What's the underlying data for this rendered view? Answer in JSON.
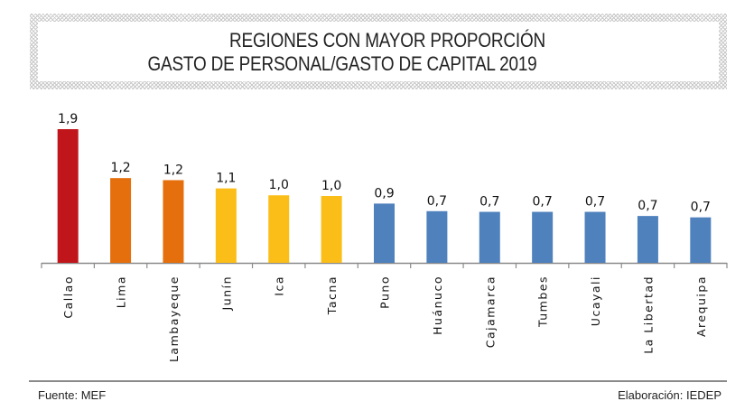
{
  "title": {
    "line1": "REGIONES CON MAYOR PROPORCIÓN",
    "line2": "GASTO DE PERSONAL/GASTO DE CAPITAL 2019"
  },
  "footer": {
    "source": "Fuente: MEF",
    "elaboration": "Elaboración: IEDEP"
  },
  "chart_data": {
    "type": "bar",
    "title": "REGIONES CON MAYOR PROPORCIÓN GASTO DE PERSONAL/GASTO DE CAPITAL 2019",
    "xlabel": "",
    "ylabel": "",
    "ylim": [
      0,
      2.0
    ],
    "grid": false,
    "legend": "none",
    "categories": [
      "Callao",
      "Lima",
      "Lambayeque",
      "Junín",
      "Ica",
      "Tacna",
      "Puno",
      "Huánuco",
      "Cajamarca",
      "Tumbes",
      "Ucayali",
      "La Libertad",
      "Arequipa"
    ],
    "values": [
      1.94,
      1.23,
      1.2,
      1.08,
      0.98,
      0.97,
      0.86,
      0.75,
      0.74,
      0.74,
      0.74,
      0.68,
      0.66
    ],
    "data_labels": [
      "1,9",
      "1,2",
      "1,2",
      "1,1",
      "1,0",
      "1,0",
      "0,9",
      "0,7",
      "0,7",
      "0,7",
      "0,7",
      "0,7",
      "0,7"
    ],
    "bar_colors": [
      "#c0161b",
      "#e56f0c",
      "#e56f0c",
      "#fbbd18",
      "#fbbd18",
      "#fbbd18",
      "#4f81bd",
      "#4f81bd",
      "#4f81bd",
      "#4f81bd",
      "#4f81bd",
      "#4f81bd",
      "#4f81bd"
    ],
    "axis_color": "#8a8a8a"
  }
}
